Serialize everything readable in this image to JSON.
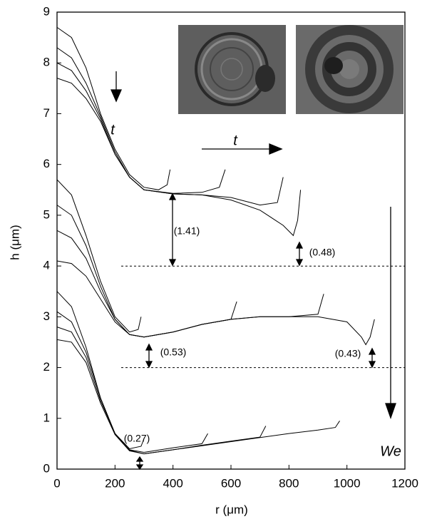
{
  "chart_data": {
    "type": "line",
    "xlabel": "r (μm)",
    "ylabel": "h (μm)",
    "xlim": [
      0,
      1200
    ],
    "xticks": [
      0,
      200,
      400,
      600,
      800,
      1000,
      1200
    ],
    "ylim": [
      0,
      9
    ],
    "yticks": [
      0,
      1,
      2,
      3,
      4,
      5,
      6,
      7,
      8,
      9
    ],
    "annotations": [
      "t",
      "t",
      "(1.41)",
      "(0.48)",
      "(0.53)",
      "(0.43)",
      "(0.27)",
      "We"
    ],
    "series": [
      {
        "color": "#000000",
        "x": [
          0,
          50,
          100,
          150,
          200,
          250,
          300,
          350,
          380,
          390
        ],
        "values": [
          8.7,
          8.5,
          7.9,
          7.0,
          6.3,
          5.8,
          5.55,
          5.5,
          5.6,
          5.9
        ]
      },
      {
        "color": "#000000",
        "x": [
          0,
          50,
          100,
          150,
          200,
          250,
          300,
          400,
          500,
          560,
          580
        ],
        "values": [
          8.3,
          8.1,
          7.6,
          6.95,
          6.25,
          5.75,
          5.5,
          5.43,
          5.45,
          5.55,
          5.9
        ]
      },
      {
        "color": "#000000",
        "x": [
          0,
          50,
          100,
          150,
          200,
          250,
          300,
          400,
          500,
          600,
          700,
          760,
          780
        ],
        "values": [
          8.0,
          7.85,
          7.45,
          6.9,
          6.2,
          5.75,
          5.5,
          5.42,
          5.4,
          5.35,
          5.2,
          5.25,
          5.75
        ]
      },
      {
        "color": "#000000",
        "x": [
          0,
          50,
          100,
          150,
          200,
          250,
          300,
          400,
          500,
          600,
          700,
          780,
          815,
          830,
          840
        ],
        "values": [
          7.7,
          7.6,
          7.3,
          6.85,
          6.2,
          5.75,
          5.5,
          5.42,
          5.4,
          5.3,
          5.1,
          4.8,
          4.6,
          4.9,
          5.5
        ]
      },
      {
        "color": "#000000",
        "x": [
          0,
          50,
          100,
          150,
          200,
          250,
          280,
          290
        ],
        "values": [
          5.7,
          5.4,
          4.6,
          3.7,
          3.0,
          2.7,
          2.75,
          3.0
        ]
      },
      {
        "color": "#000000",
        "x": [
          0,
          50,
          100,
          150,
          200,
          250,
          300,
          400,
          500,
          600,
          620
        ],
        "values": [
          5.2,
          5.0,
          4.4,
          3.6,
          2.95,
          2.65,
          2.6,
          2.7,
          2.85,
          2.95,
          3.3
        ]
      },
      {
        "color": "#000000",
        "x": [
          0,
          50,
          100,
          150,
          200,
          250,
          300,
          400,
          500,
          600,
          700,
          800,
          900,
          920
        ],
        "values": [
          4.7,
          4.55,
          4.15,
          3.5,
          2.95,
          2.65,
          2.6,
          2.7,
          2.85,
          2.95,
          3.0,
          3.0,
          3.05,
          3.45
        ]
      },
      {
        "color": "#000000",
        "x": [
          0,
          50,
          100,
          150,
          200,
          250,
          300,
          400,
          500,
          600,
          700,
          800,
          900,
          1000,
          1050,
          1065,
          1080,
          1095
        ],
        "values": [
          4.1,
          4.05,
          3.8,
          3.35,
          2.9,
          2.65,
          2.6,
          2.7,
          2.85,
          2.95,
          3.0,
          3.0,
          3.0,
          2.9,
          2.6,
          2.45,
          2.6,
          2.95
        ]
      },
      {
        "color": "#000000",
        "x": [
          0,
          50,
          100,
          150,
          200,
          250,
          290,
          300
        ],
        "values": [
          3.5,
          3.2,
          2.4,
          1.4,
          0.7,
          0.4,
          0.45,
          0.6
        ]
      },
      {
        "color": "#000000",
        "x": [
          0,
          50,
          100,
          150,
          200,
          250,
          300,
          400,
          500,
          520
        ],
        "values": [
          3.1,
          2.9,
          2.3,
          1.4,
          0.7,
          0.38,
          0.33,
          0.42,
          0.5,
          0.7
        ]
      },
      {
        "color": "#000000",
        "x": [
          0,
          50,
          100,
          150,
          200,
          250,
          300,
          400,
          500,
          600,
          700,
          720
        ],
        "values": [
          2.8,
          2.7,
          2.2,
          1.35,
          0.7,
          0.37,
          0.3,
          0.38,
          0.47,
          0.55,
          0.63,
          0.85
        ]
      },
      {
        "color": "#000000",
        "x": [
          0,
          50,
          100,
          150,
          200,
          250,
          300,
          400,
          500,
          600,
          700,
          800,
          900,
          960,
          975
        ],
        "values": [
          2.55,
          2.5,
          2.1,
          1.3,
          0.68,
          0.36,
          0.3,
          0.38,
          0.46,
          0.54,
          0.62,
          0.7,
          0.77,
          0.82,
          0.95
        ]
      }
    ]
  }
}
